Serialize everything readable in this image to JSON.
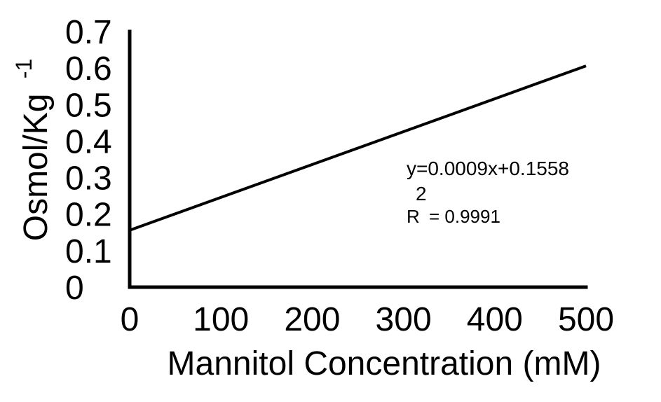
{
  "chart_data": {
    "type": "line",
    "title": "",
    "xlabel": "Mannitol Concentration (mM)",
    "ylabel": "Osmol/Kg",
    "ylabel_exponent": "-1",
    "xlim": [
      0,
      500
    ],
    "ylim": [
      0,
      0.7
    ],
    "x_ticks": [
      "0",
      "100",
      "200",
      "300",
      "400",
      "500"
    ],
    "y_ticks": [
      "0",
      "0.1",
      "0.2",
      "0.3",
      "0.4",
      "0.5",
      "0.6",
      "0.7"
    ],
    "grid": false,
    "series": [
      {
        "x": [
          0,
          500
        ],
        "y": [
          0.1558,
          0.6058
        ]
      }
    ],
    "annotations": {
      "equation": "y=0.0009x+0.1558",
      "r2_prefix": "R",
      "r2_exponent": "2",
      "r2_value": "= 0.9991"
    },
    "line_color": "#000000"
  }
}
